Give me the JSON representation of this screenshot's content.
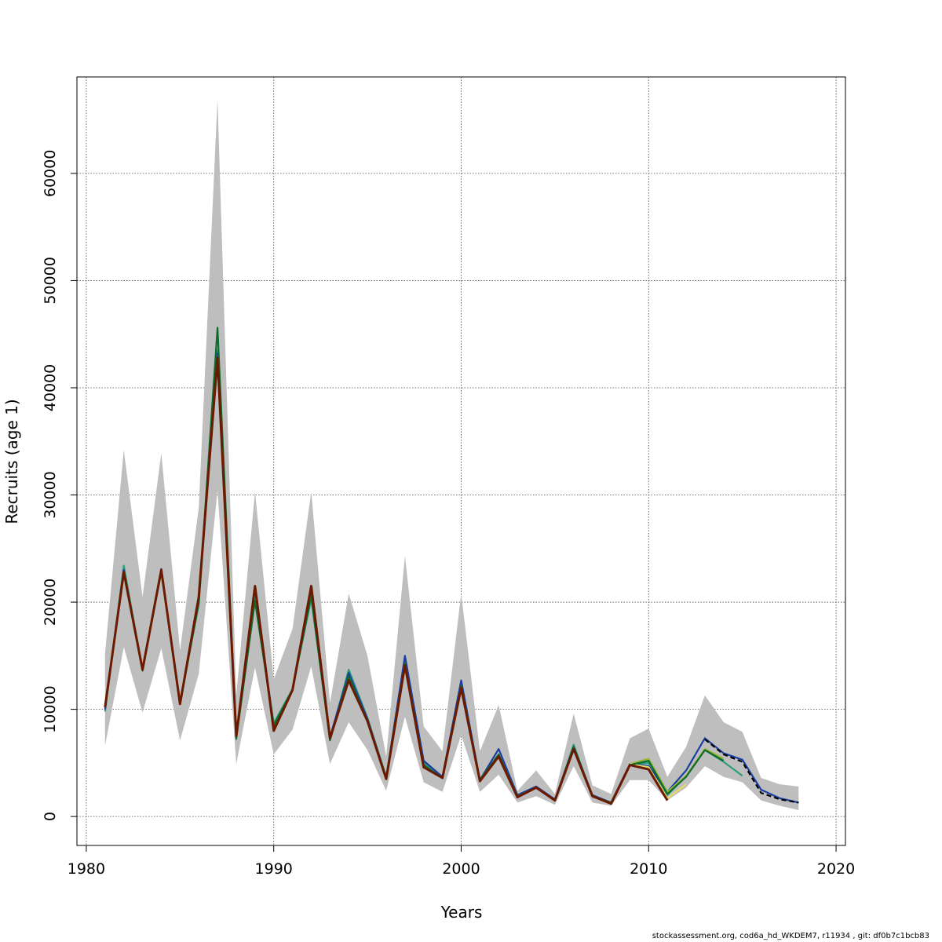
{
  "chart_data": {
    "type": "line",
    "title": "",
    "xlabel": "Years",
    "ylabel": "Recruits (age 1)",
    "xlim": [
      1979.5,
      2020.5
    ],
    "ylim": [
      -2700,
      69000
    ],
    "x_ticks": [
      1980,
      1990,
      2000,
      2010,
      2020
    ],
    "y_ticks": [
      0,
      10000,
      20000,
      30000,
      40000,
      50000,
      60000
    ],
    "grid": true,
    "legend": "none",
    "confidence_band": {
      "color": "#bebebe",
      "x": [
        1981,
        1982,
        1983,
        1984,
        1985,
        1986,
        1987,
        1988,
        1989,
        1990,
        1991,
        1992,
        1993,
        1994,
        1995,
        1996,
        1997,
        1998,
        1999,
        2000,
        2001,
        2002,
        2003,
        2004,
        2005,
        2006,
        2007,
        2008,
        2009,
        2010,
        2011,
        2012,
        2013,
        2014,
        2015,
        2016,
        2017,
        2018
      ],
      "upper": [
        15200,
        34200,
        20500,
        33900,
        15500,
        28800,
        66900,
        11300,
        30300,
        12800,
        17500,
        30300,
        10600,
        20800,
        15000,
        5600,
        24300,
        8400,
        6100,
        20800,
        6100,
        10400,
        2400,
        4300,
        2100,
        9600,
        2900,
        2100,
        7300,
        8200,
        3700,
        6500,
        11300,
        8800,
        7900,
        3600,
        3000,
        2800
      ],
      "lower": [
        6600,
        15800,
        9700,
        15700,
        7100,
        13300,
        30400,
        4900,
        13900,
        5800,
        8100,
        14000,
        4900,
        8800,
        6200,
        2400,
        9300,
        3200,
        2300,
        7600,
        2300,
        3900,
        1300,
        1900,
        1100,
        4700,
        1300,
        1000,
        3400,
        3400,
        1500,
        2700,
        4700,
        3700,
        3200,
        1500,
        1000,
        600
      ]
    },
    "series": [
      {
        "color": "#2a9d7a",
        "x": [
          1981,
          1982,
          1983,
          1984,
          1985,
          1986,
          1987,
          1988,
          1989,
          1990,
          1991,
          1992,
          1993,
          1994,
          1995,
          1996,
          1997,
          1998,
          1999,
          2000,
          2001,
          2002,
          2003,
          2004,
          2005,
          2006,
          2007,
          2008,
          2009,
          2010,
          2011,
          2012,
          2013,
          2014,
          2015
        ],
        "values": [
          9800,
          23400,
          13700,
          22800,
          10700,
          19800,
          43500,
          7200,
          20400,
          8700,
          11900,
          20300,
          7200,
          13700,
          9200,
          3700,
          14500,
          5000,
          3700,
          12500,
          3300,
          5800,
          1800,
          2700,
          1500,
          6700,
          1900,
          1300,
          4800,
          5000,
          2000,
          3800,
          6200,
          5100,
          3800
        ]
      },
      {
        "color": "#1b3fa0",
        "x": [
          1981,
          1982,
          1983,
          1984,
          1985,
          1986,
          1987,
          1988,
          1989,
          1990,
          1991,
          1992,
          1993,
          1994,
          1995,
          1996,
          1997,
          1998,
          1999,
          2000,
          2001,
          2002,
          2003,
          2004,
          2005,
          2006,
          2007,
          2008,
          2009,
          2010,
          2011,
          2012,
          2013,
          2014,
          2015,
          2016,
          2017,
          2018
        ],
        "values": [
          10000,
          23000,
          13700,
          23100,
          10500,
          20300,
          43200,
          7400,
          21300,
          8300,
          11800,
          21200,
          7400,
          13400,
          9100,
          3600,
          15000,
          5200,
          3700,
          12700,
          3400,
          6300,
          2000,
          2800,
          1600,
          6500,
          2000,
          1300,
          4900,
          4700,
          2300,
          4300,
          7300,
          5900,
          5300,
          2500,
          1700,
          1300
        ]
      },
      {
        "color": "#9ab83a",
        "x": [
          2009,
          2010,
          2011,
          2012,
          2013,
          2014
        ],
        "values": [
          4900,
          5400,
          2300,
          3800,
          6300,
          5400
        ]
      },
      {
        "color": "#e6d96a",
        "x": [
          2009,
          2010,
          2011,
          2012
        ],
        "values": [
          4900,
          4600,
          1700,
          3000
        ]
      },
      {
        "color": "#0d6b2d",
        "x": [
          1981,
          1982,
          1983,
          1984,
          1985,
          1986,
          1987,
          1988,
          1989,
          1990,
          1991,
          1992,
          1993,
          1994,
          1995,
          1996,
          1997,
          1998,
          1999,
          2000,
          2001,
          2002,
          2003,
          2004,
          2005,
          2006,
          2007,
          2008,
          2009,
          2010,
          2011,
          2012,
          2013,
          2014
        ],
        "values": [
          10300,
          22800,
          13600,
          23000,
          10500,
          19900,
          45600,
          7300,
          20100,
          8500,
          11800,
          20600,
          7100,
          13100,
          8900,
          3600,
          14300,
          4800,
          3600,
          12200,
          3400,
          5800,
          1900,
          2700,
          1500,
          6500,
          1900,
          1300,
          4800,
          5200,
          2100,
          3700,
          6200,
          5200
        ]
      },
      {
        "color": "#000000",
        "dashed": true,
        "x": [
          2013,
          2014,
          2015,
          2016,
          2017,
          2018
        ],
        "values": [
          7200,
          5800,
          5100,
          2200,
          1600,
          1300
        ]
      },
      {
        "color": "#6b1a00",
        "x": [
          1981,
          1982,
          1983,
          1984,
          1985,
          1986,
          1987,
          1988,
          1989,
          1990,
          1991,
          1992,
          1993,
          1994,
          1995,
          1996,
          1997,
          1998,
          1999,
          2000,
          2001,
          2002,
          2003,
          2004,
          2005,
          2006,
          2007,
          2008,
          2009,
          2010,
          2011
        ],
        "values": [
          10200,
          22800,
          13700,
          23000,
          10500,
          20500,
          42800,
          7500,
          21500,
          8000,
          11800,
          21500,
          7300,
          12700,
          8900,
          3500,
          14100,
          4600,
          3600,
          12000,
          3300,
          5600,
          1800,
          2700,
          1500,
          6300,
          1900,
          1200,
          4800,
          4400,
          1500
        ]
      }
    ]
  },
  "footer": "stockassessment.org, cod6a_hd_WKDEM7, r11934 , git: df0b7c1bcb83"
}
